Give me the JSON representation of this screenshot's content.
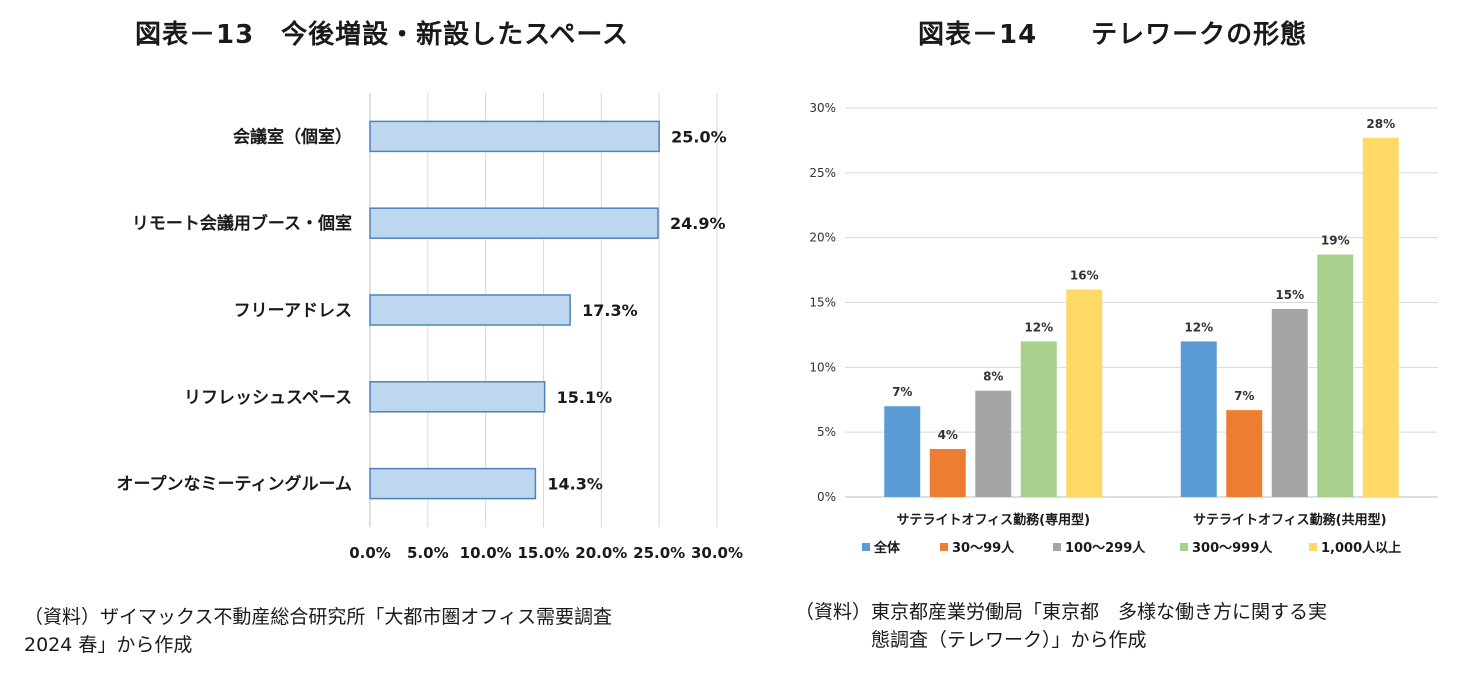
{
  "left": {
    "title": "図表－13　今後増設・新設したスペース",
    "source": "（資料）ザイマックス不動産総合研究所「大都市圏オフィス需要調査\n2024 春」から作成"
  },
  "right": {
    "title": "図表－14　　テレワークの形態",
    "source": "（資料）東京都産業労働局「東京都　多様な働き方に関する実\n　　　　態調査（テレワーク）」から作成"
  },
  "chart_data": [
    {
      "type": "bar",
      "orientation": "horizontal",
      "categories": [
        "会議室（個室）",
        "リモート会議用ブース・個室",
        "フリーアドレス",
        "リフレッシュスペース",
        "オープンなミーティングルーム"
      ],
      "values": [
        25.0,
        24.9,
        17.3,
        15.1,
        14.3
      ],
      "value_labels": [
        "25.0%",
        "24.9%",
        "17.3%",
        "15.1%",
        "14.3%"
      ],
      "xlim": [
        0,
        30
      ],
      "xticks": [
        "0.0%",
        "5.0%",
        "10.0%",
        "15.0%",
        "20.0%",
        "25.0%",
        "30.0%"
      ],
      "grid": true,
      "bar_color": "#bdd7ee",
      "bar_edge_color": "#4f81bd"
    },
    {
      "type": "bar",
      "categories": [
        "サテライトオフィス勤務(専用型)",
        "サテライトオフィス勤務(共用型)"
      ],
      "series": [
        {
          "name": "全体",
          "values": [
            7,
            12
          ],
          "color": "#5b9bd5"
        },
        {
          "name": "30～99人",
          "values": [
            3.7,
            6.7
          ],
          "color": "#ed7d31"
        },
        {
          "name": "100～299人",
          "values": [
            8.2,
            14.5
          ],
          "color": "#a5a5a5"
        },
        {
          "name": "300～999人",
          "values": [
            12,
            18.7
          ],
          "color": "#a9d18e"
        },
        {
          "name": "1,000人以上",
          "values": [
            16,
            27.7
          ],
          "color": "#ffd966"
        }
      ],
      "value_labels": [
        [
          "7%",
          "4%",
          "8%",
          "12%",
          "16%"
        ],
        [
          "12%",
          "7%",
          "15%",
          "19%",
          "28%"
        ]
      ],
      "ylim": [
        0,
        30
      ],
      "yticks": [
        "0%",
        "5%",
        "10%",
        "15%",
        "20%",
        "25%",
        "30%"
      ],
      "grid": true,
      "legend": "bottom"
    }
  ]
}
